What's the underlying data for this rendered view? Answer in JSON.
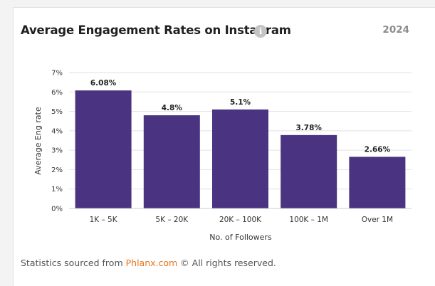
{
  "card": {
    "title": "Average Engagement Rates on Instagram",
    "info_icon": "info-icon",
    "info_glyph": "i",
    "year": "2024"
  },
  "footer": {
    "prefix": "Statistics sourced from ",
    "link_text": "Phlanx.com",
    "suffix": " © All rights reserved."
  },
  "colors": {
    "bar": "#4a3380",
    "gridline": "#e2e2e2",
    "link": "#e8741a"
  },
  "chart_data": {
    "type": "bar",
    "title": "Average Engagement Rates on Instagram",
    "xlabel": "No. of Followers",
    "ylabel": "Average Eng rate",
    "categories": [
      "1K – 5K",
      "5K – 20K",
      "20K – 100K",
      "100K – 1M",
      "Over 1M"
    ],
    "values": [
      6.08,
      4.8,
      5.1,
      3.78,
      2.66
    ],
    "value_labels": [
      "6.08%",
      "4.8%",
      "5.1%",
      "3.78%",
      "2.66%"
    ],
    "yticks": [
      0,
      1,
      2,
      3,
      4,
      5,
      6,
      7
    ],
    "ytick_labels": [
      "0%",
      "1%",
      "2%",
      "3%",
      "4%",
      "5%",
      "6%",
      "7%"
    ],
    "ylim": [
      0,
      7
    ],
    "grid": true,
    "legend": "none"
  }
}
